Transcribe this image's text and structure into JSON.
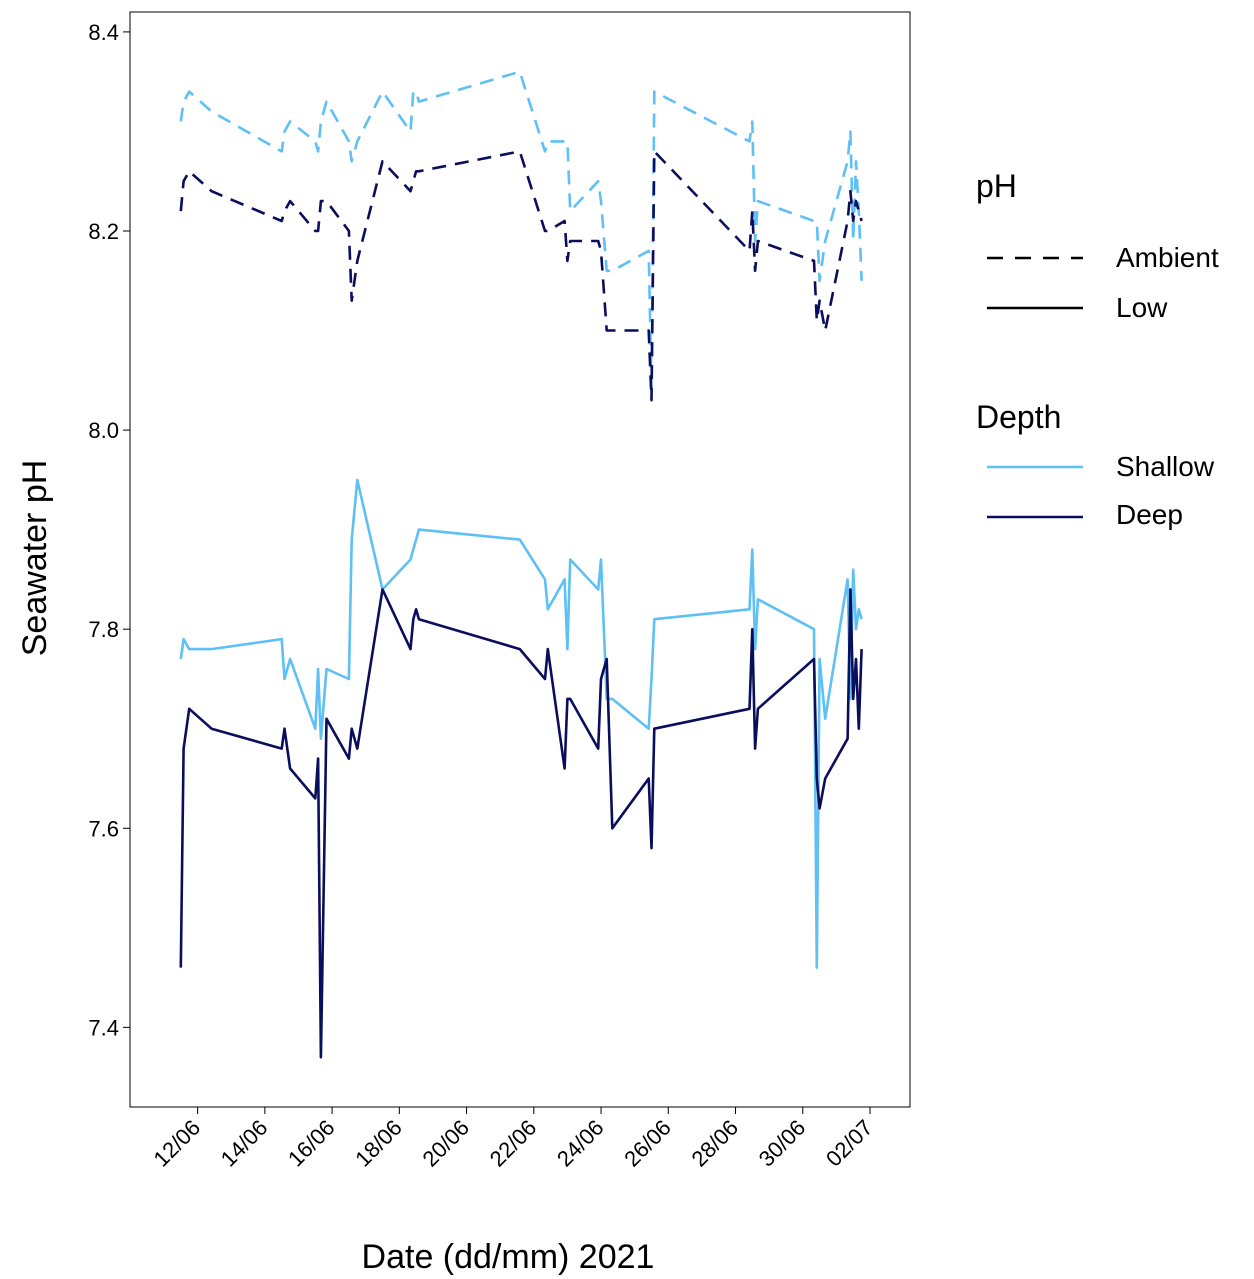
{
  "colors": {
    "shallow": "#5ec0f5",
    "deep": "#0b0e5c"
  },
  "chart_data": {
    "type": "line",
    "title": "",
    "xlabel": "Date (dd/mm) 2021",
    "ylabel": "Seawater pH",
    "xlim": [
      "2021-06-11",
      "2021-07-02"
    ],
    "ylim": [
      7.32,
      8.42
    ],
    "x_ticks": [
      "2021-06-12",
      "2021-06-14",
      "2021-06-16",
      "2021-06-18",
      "2021-06-20",
      "2021-06-22",
      "2021-06-24",
      "2021-06-26",
      "2021-06-28",
      "2021-06-30",
      "2021-07-02"
    ],
    "x_tick_labels": [
      "12/06",
      "14/06",
      "16/06",
      "18/06",
      "20/06",
      "22/06",
      "24/06",
      "26/06",
      "28/06",
      "30/06",
      "02/07"
    ],
    "y_ticks": [
      7.4,
      7.6,
      7.8,
      8.0,
      8.2,
      8.4
    ],
    "y_tick_labels": [
      "7.4",
      "7.6",
      "7.8",
      "8.0",
      "8.2",
      "8.4"
    ],
    "grid": false,
    "legend_position": "right",
    "legend": {
      "ph_title": "pH",
      "ph_items": [
        "Ambient",
        "Low"
      ],
      "depth_title": "Depth",
      "depth_items": [
        "Shallow",
        "Deep"
      ]
    },
    "series": [
      {
        "name": "Ambient Shallow",
        "depth": "Shallow",
        "ph": "Ambient",
        "x": [
          "2021-06-11 12:00",
          "2021-06-11 14:00",
          "2021-06-11 18:00",
          "2021-06-12 10:00",
          "2021-06-14 12:00",
          "2021-06-14 14:00",
          "2021-06-14 18:00",
          "2021-06-15 12:00",
          "2021-06-15 14:00",
          "2021-06-15 16:00",
          "2021-06-15 20:00",
          "2021-06-16 12:00",
          "2021-06-16 14:00",
          "2021-06-16 18:00",
          "2021-06-17 12:00",
          "2021-06-18 08:00",
          "2021-06-18 10:00",
          "2021-06-18 12:00",
          "2021-06-18 14:00",
          "2021-06-21 14:00",
          "2021-06-22 08:00",
          "2021-06-22 10:00",
          "2021-06-22 22:00",
          "2021-06-23 00:00",
          "2021-06-23 02:00",
          "2021-06-23 22:00",
          "2021-06-24 00:00",
          "2021-06-24 04:00",
          "2021-06-24 08:00",
          "2021-06-25 10:00",
          "2021-06-25 12:00",
          "2021-06-25 14:00",
          "2021-06-28 10:00",
          "2021-06-28 12:00",
          "2021-06-28 14:00",
          "2021-06-28 16:00",
          "2021-06-30 08:00",
          "2021-06-30 10:00",
          "2021-06-30 12:00",
          "2021-06-30 16:00",
          "2021-07-01 08:00",
          "2021-07-01 10:00",
          "2021-07-01 12:00",
          "2021-07-01 14:00",
          "2021-07-01 16:00",
          "2021-07-01 18:00"
        ],
        "y": [
          8.31,
          8.33,
          8.34,
          8.32,
          8.28,
          8.3,
          8.31,
          8.29,
          8.28,
          8.31,
          8.33,
          8.29,
          8.27,
          8.29,
          8.34,
          8.3,
          8.34,
          8.34,
          8.33,
          8.36,
          8.28,
          8.29,
          8.29,
          8.29,
          8.22,
          8.25,
          8.23,
          8.16,
          8.16,
          8.18,
          8.04,
          8.34,
          8.29,
          8.31,
          8.19,
          8.23,
          8.21,
          8.21,
          8.15,
          8.19,
          8.27,
          8.3,
          8.19,
          8.27,
          8.22,
          8.15
        ]
      },
      {
        "name": "Ambient Deep",
        "depth": "Deep",
        "ph": "Ambient",
        "x": [
          "2021-06-11 12:00",
          "2021-06-11 14:00",
          "2021-06-11 18:00",
          "2021-06-12 10:00",
          "2021-06-14 12:00",
          "2021-06-14 14:00",
          "2021-06-14 18:00",
          "2021-06-15 12:00",
          "2021-06-15 14:00",
          "2021-06-15 16:00",
          "2021-06-15 20:00",
          "2021-06-16 12:00",
          "2021-06-16 14:00",
          "2021-06-16 18:00",
          "2021-06-17 12:00",
          "2021-06-18 08:00",
          "2021-06-18 10:00",
          "2021-06-18 12:00",
          "2021-06-18 14:00",
          "2021-06-21 14:00",
          "2021-06-22 08:00",
          "2021-06-22 10:00",
          "2021-06-22 22:00",
          "2021-06-23 00:00",
          "2021-06-23 02:00",
          "2021-06-23 22:00",
          "2021-06-24 00:00",
          "2021-06-24 04:00",
          "2021-06-24 08:00",
          "2021-06-25 10:00",
          "2021-06-25 12:00",
          "2021-06-25 14:00",
          "2021-06-28 10:00",
          "2021-06-28 12:00",
          "2021-06-28 14:00",
          "2021-06-28 16:00",
          "2021-06-30 08:00",
          "2021-06-30 10:00",
          "2021-06-30 12:00",
          "2021-06-30 16:00",
          "2021-07-01 08:00",
          "2021-07-01 10:00",
          "2021-07-01 12:00",
          "2021-07-01 14:00",
          "2021-07-01 16:00",
          "2021-07-01 18:00"
        ],
        "y": [
          8.22,
          8.25,
          8.26,
          8.24,
          8.21,
          8.22,
          8.23,
          8.2,
          8.2,
          8.23,
          8.23,
          8.2,
          8.13,
          8.17,
          8.27,
          8.24,
          8.25,
          8.26,
          8.26,
          8.28,
          8.2,
          8.2,
          8.21,
          8.17,
          8.19,
          8.19,
          8.18,
          8.1,
          8.1,
          8.1,
          8.03,
          8.28,
          8.18,
          8.22,
          8.16,
          8.19,
          8.17,
          8.11,
          8.13,
          8.1,
          8.21,
          8.24,
          8.21,
          8.23,
          8.22,
          8.21
        ]
      },
      {
        "name": "Low Shallow",
        "depth": "Shallow",
        "ph": "Low",
        "x": [
          "2021-06-11 12:00",
          "2021-06-11 14:00",
          "2021-06-11 18:00",
          "2021-06-12 10:00",
          "2021-06-14 12:00",
          "2021-06-14 14:00",
          "2021-06-14 18:00",
          "2021-06-15 12:00",
          "2021-06-15 14:00",
          "2021-06-15 16:00",
          "2021-06-15 20:00",
          "2021-06-16 12:00",
          "2021-06-16 14:00",
          "2021-06-16 18:00",
          "2021-06-17 12:00",
          "2021-06-18 08:00",
          "2021-06-18 10:00",
          "2021-06-18 12:00",
          "2021-06-18 14:00",
          "2021-06-21 14:00",
          "2021-06-22 08:00",
          "2021-06-22 10:00",
          "2021-06-22 22:00",
          "2021-06-23 00:00",
          "2021-06-23 02:00",
          "2021-06-23 22:00",
          "2021-06-24 00:00",
          "2021-06-24 04:00",
          "2021-06-24 08:00",
          "2021-06-25 10:00",
          "2021-06-25 12:00",
          "2021-06-25 14:00",
          "2021-06-28 10:00",
          "2021-06-28 12:00",
          "2021-06-28 14:00",
          "2021-06-28 16:00",
          "2021-06-30 08:00",
          "2021-06-30 10:00",
          "2021-06-30 12:00",
          "2021-06-30 16:00",
          "2021-07-01 08:00",
          "2021-07-01 10:00",
          "2021-07-01 12:00",
          "2021-07-01 14:00",
          "2021-07-01 16:00",
          "2021-07-01 18:00"
        ],
        "y": [
          7.77,
          7.79,
          7.78,
          7.78,
          7.79,
          7.75,
          7.77,
          7.7,
          7.76,
          7.69,
          7.76,
          7.75,
          7.89,
          7.95,
          7.84,
          7.87,
          7.88,
          7.89,
          7.9,
          7.89,
          7.85,
          7.82,
          7.85,
          7.78,
          7.87,
          7.84,
          7.87,
          7.73,
          7.73,
          7.7,
          7.75,
          7.81,
          7.82,
          7.88,
          7.78,
          7.83,
          7.8,
          7.46,
          7.77,
          7.71,
          7.85,
          7.73,
          7.86,
          7.8,
          7.82,
          7.81
        ]
      },
      {
        "name": "Low Deep",
        "depth": "Deep",
        "ph": "Low",
        "x": [
          "2021-06-11 12:00",
          "2021-06-11 14:00",
          "2021-06-11 18:00",
          "2021-06-12 10:00",
          "2021-06-14 12:00",
          "2021-06-14 14:00",
          "2021-06-14 18:00",
          "2021-06-15 12:00",
          "2021-06-15 14:00",
          "2021-06-15 16:00",
          "2021-06-15 20:00",
          "2021-06-16 12:00",
          "2021-06-16 14:00",
          "2021-06-16 18:00",
          "2021-06-17 12:00",
          "2021-06-18 08:00",
          "2021-06-18 10:00",
          "2021-06-18 12:00",
          "2021-06-18 14:00",
          "2021-06-21 14:00",
          "2021-06-22 08:00",
          "2021-06-22 10:00",
          "2021-06-22 22:00",
          "2021-06-23 00:00",
          "2021-06-23 02:00",
          "2021-06-23 22:00",
          "2021-06-24 00:00",
          "2021-06-24 04:00",
          "2021-06-24 08:00",
          "2021-06-25 10:00",
          "2021-06-25 12:00",
          "2021-06-25 14:00",
          "2021-06-28 10:00",
          "2021-06-28 12:00",
          "2021-06-28 14:00",
          "2021-06-28 16:00",
          "2021-06-30 08:00",
          "2021-06-30 10:00",
          "2021-06-30 12:00",
          "2021-06-30 16:00",
          "2021-07-01 08:00",
          "2021-07-01 10:00",
          "2021-07-01 12:00",
          "2021-07-01 14:00",
          "2021-07-01 16:00",
          "2021-07-01 18:00"
        ],
        "y": [
          7.46,
          7.68,
          7.72,
          7.7,
          7.68,
          7.7,
          7.66,
          7.63,
          7.67,
          7.37,
          7.71,
          7.67,
          7.7,
          7.68,
          7.84,
          7.78,
          7.81,
          7.82,
          7.81,
          7.78,
          7.75,
          7.78,
          7.66,
          7.73,
          7.73,
          7.68,
          7.75,
          7.77,
          7.6,
          7.65,
          7.58,
          7.7,
          7.72,
          7.8,
          7.68,
          7.72,
          7.77,
          7.65,
          7.62,
          7.65,
          7.69,
          7.84,
          7.73,
          7.77,
          7.7,
          7.78
        ]
      }
    ]
  }
}
